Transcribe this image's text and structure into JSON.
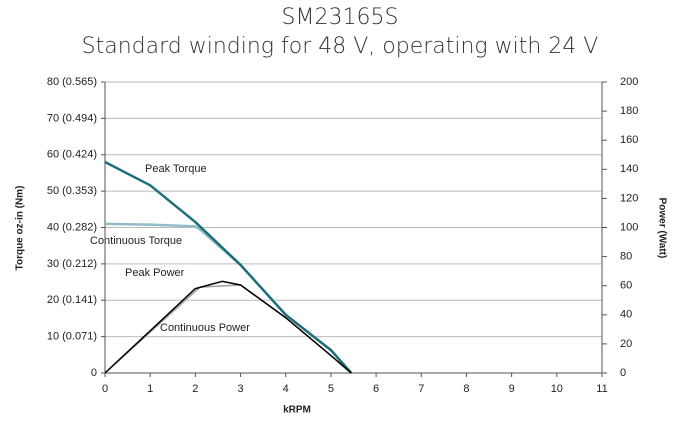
{
  "chart_data": {
    "type": "line",
    "title": "SM23165S",
    "subtitle": "Standard winding for 48 V, operating with 24 V",
    "x_label": "kRPM",
    "y_label": "Torque  oz-in (Nm)",
    "y2_label": "Power (Watt)",
    "xlim": [
      0,
      11
    ],
    "xticks": [
      0,
      1,
      2,
      3,
      4,
      5,
      6,
      7,
      8,
      9,
      10,
      11
    ],
    "ylim": [
      0,
      80
    ],
    "yticks": [
      0,
      {
        "value": 10,
        "label": "10 (0.071)"
      },
      {
        "value": 20,
        "label": "20 (0.141)"
      },
      {
        "value": 30,
        "label": "30 (0.212)"
      },
      {
        "value": 40,
        "label": "40 (0.282)"
      },
      {
        "value": 50,
        "label": "50 (0.353)"
      },
      {
        "value": 60,
        "label": "60 (0.424)"
      },
      {
        "value": 70,
        "label": "70 (0.494)"
      },
      {
        "value": 80,
        "label": "80 (0.565)"
      }
    ],
    "y2lim": [
      0,
      200
    ],
    "y2ticks": [
      0,
      20,
      40,
      60,
      80,
      100,
      120,
      140,
      160,
      180,
      200
    ],
    "grid": true,
    "series": [
      {
        "name": "Continuous Torque",
        "color": "#8fbcc8",
        "x": [
          0,
          1,
          2,
          2.1,
          3,
          4,
          5,
          5.45
        ],
        "values": [
          41,
          40.8,
          40.3,
          39.5,
          29.7,
          16,
          6.3,
          0
        ]
      },
      {
        "name": "Peak Torque",
        "color": "#1f6f78",
        "x": [
          0,
          1,
          2,
          3,
          4,
          5,
          5.45
        ],
        "values": [
          58,
          51.6,
          41.5,
          29.7,
          16,
          6.3,
          0
        ]
      },
      {
        "name": "Continuous Power",
        "color": "#a0a0a0",
        "axis": "y2",
        "x": [
          0,
          2.1,
          3,
          4,
          5,
          5.45
        ],
        "values": [
          0,
          59,
          60.5,
          38,
          12,
          0
        ]
      },
      {
        "name": "Peak Power",
        "color": "#000000",
        "axis": "y2",
        "x": [
          0,
          1,
          2,
          2.6,
          3,
          4,
          5,
          5.45
        ],
        "values": [
          0,
          29,
          58,
          63,
          60.5,
          38,
          12,
          0
        ]
      }
    ]
  }
}
